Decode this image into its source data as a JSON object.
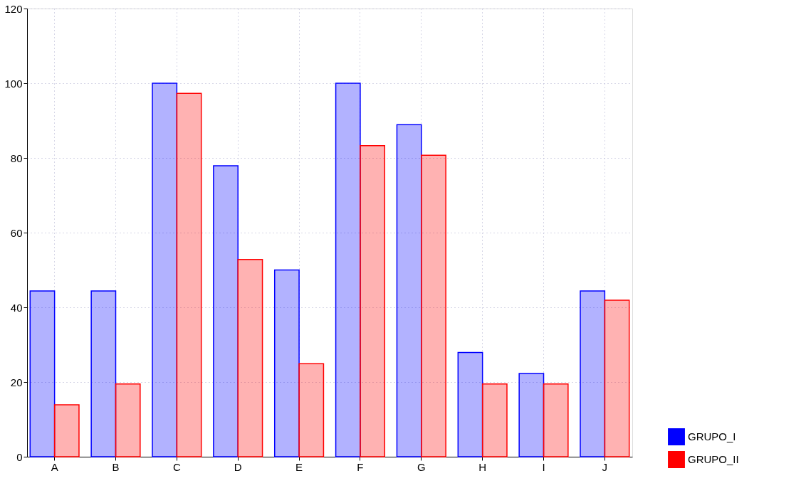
{
  "chart_data": {
    "type": "bar",
    "categories": [
      "A",
      "B",
      "C",
      "D",
      "E",
      "F",
      "G",
      "H",
      "I",
      "J"
    ],
    "series": [
      {
        "name": "GRUPO_I",
        "color": "#0000ff",
        "values": [
          44.4,
          44.4,
          100,
          77.9,
          50,
          100,
          88.9,
          27.9,
          22.3,
          44.4
        ]
      },
      {
        "name": "GRUPO_II",
        "color": "#ff0000",
        "values": [
          13.9,
          19.5,
          97.3,
          52.8,
          24.9,
          83.3,
          80.7,
          19.5,
          19.5,
          41.9
        ]
      }
    ],
    "ylim": [
      0,
      120
    ],
    "yticks": [
      0,
      20,
      40,
      60,
      80,
      100,
      120
    ],
    "grid": true,
    "legend": "bottom right"
  }
}
